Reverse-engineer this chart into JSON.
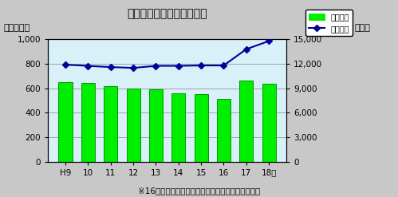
{
  "title": "事業所数と従業者数の推移",
  "xlabel_note": "※16年以前の数値には旧武儀郡の数値は含まない。",
  "ylabel_left": "（事業所）",
  "ylabel_right": "（人）",
  "categories": [
    "H9",
    "10",
    "11",
    "12",
    "13",
    "14",
    "15",
    "16",
    "17",
    "18年"
  ],
  "bar_values": [
    650,
    645,
    620,
    600,
    590,
    560,
    555,
    515,
    660,
    635
  ],
  "line_values": [
    11900,
    11750,
    11600,
    11500,
    11750,
    11750,
    11800,
    11800,
    13800,
    14800
  ],
  "bar_color": "#00ee00",
  "bar_edge_color": "#009900",
  "line_color": "#000099",
  "line_marker": "D",
  "line_marker_face": "#000099",
  "fig_bg_color": "#c8c8c8",
  "plot_bg_color": "#d8f0f8",
  "ylim_left": [
    0,
    1000
  ],
  "ylim_right": [
    0,
    15000
  ],
  "yticks_left": [
    0,
    200,
    400,
    600,
    800,
    1000
  ],
  "yticks_right": [
    0,
    3000,
    6000,
    9000,
    12000,
    15000
  ],
  "title_fontsize": 10,
  "tick_fontsize": 7.5,
  "label_fontsize": 8,
  "legend_labels": [
    "事業所数",
    "従業者数"
  ],
  "grid_color": "#888888",
  "note_fontsize": 7.5
}
